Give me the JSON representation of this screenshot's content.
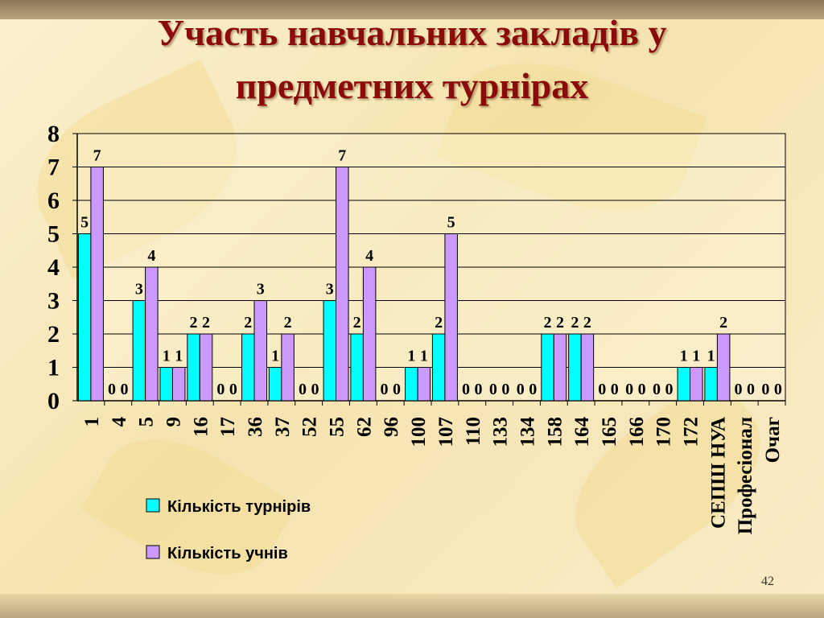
{
  "slide": {
    "title_line1": "Участь навчальних закладів у",
    "title_line2": "предметних турнірах",
    "page_number": "42"
  },
  "colors": {
    "title": "#8b0a0a",
    "series1": "#00ffff",
    "series2": "#cc99ff"
  },
  "chart_data": {
    "type": "bar",
    "title": "Участь навчальних закладів у предметних турнірах",
    "xlabel": "",
    "ylabel": "",
    "ylim": [
      0,
      8
    ],
    "yticks": [
      0,
      1,
      2,
      3,
      4,
      5,
      6,
      7,
      8
    ],
    "grid": true,
    "legend": "bottom",
    "categories": [
      "1",
      "4",
      "5",
      "9",
      "16",
      "17",
      "36",
      "37",
      "52",
      "55",
      "62",
      "96",
      "100",
      "107",
      "110",
      "133",
      "134",
      "158",
      "164",
      "165",
      "166",
      "170",
      "172",
      "СЕПШ НУА",
      "Професіонал",
      "Очаг"
    ],
    "series": [
      {
        "name": "Кількість турнірів",
        "values": [
          5,
          0,
          3,
          1,
          2,
          0,
          2,
          1,
          0,
          3,
          2,
          0,
          1,
          2,
          0,
          0,
          0,
          2,
          2,
          0,
          0,
          0,
          1,
          1,
          0,
          0
        ]
      },
      {
        "name": "Кількість учнів",
        "values": [
          7,
          0,
          4,
          1,
          2,
          0,
          3,
          2,
          0,
          7,
          4,
          0,
          1,
          5,
          0,
          0,
          0,
          2,
          2,
          0,
          0,
          0,
          1,
          2,
          0,
          0
        ]
      }
    ]
  }
}
